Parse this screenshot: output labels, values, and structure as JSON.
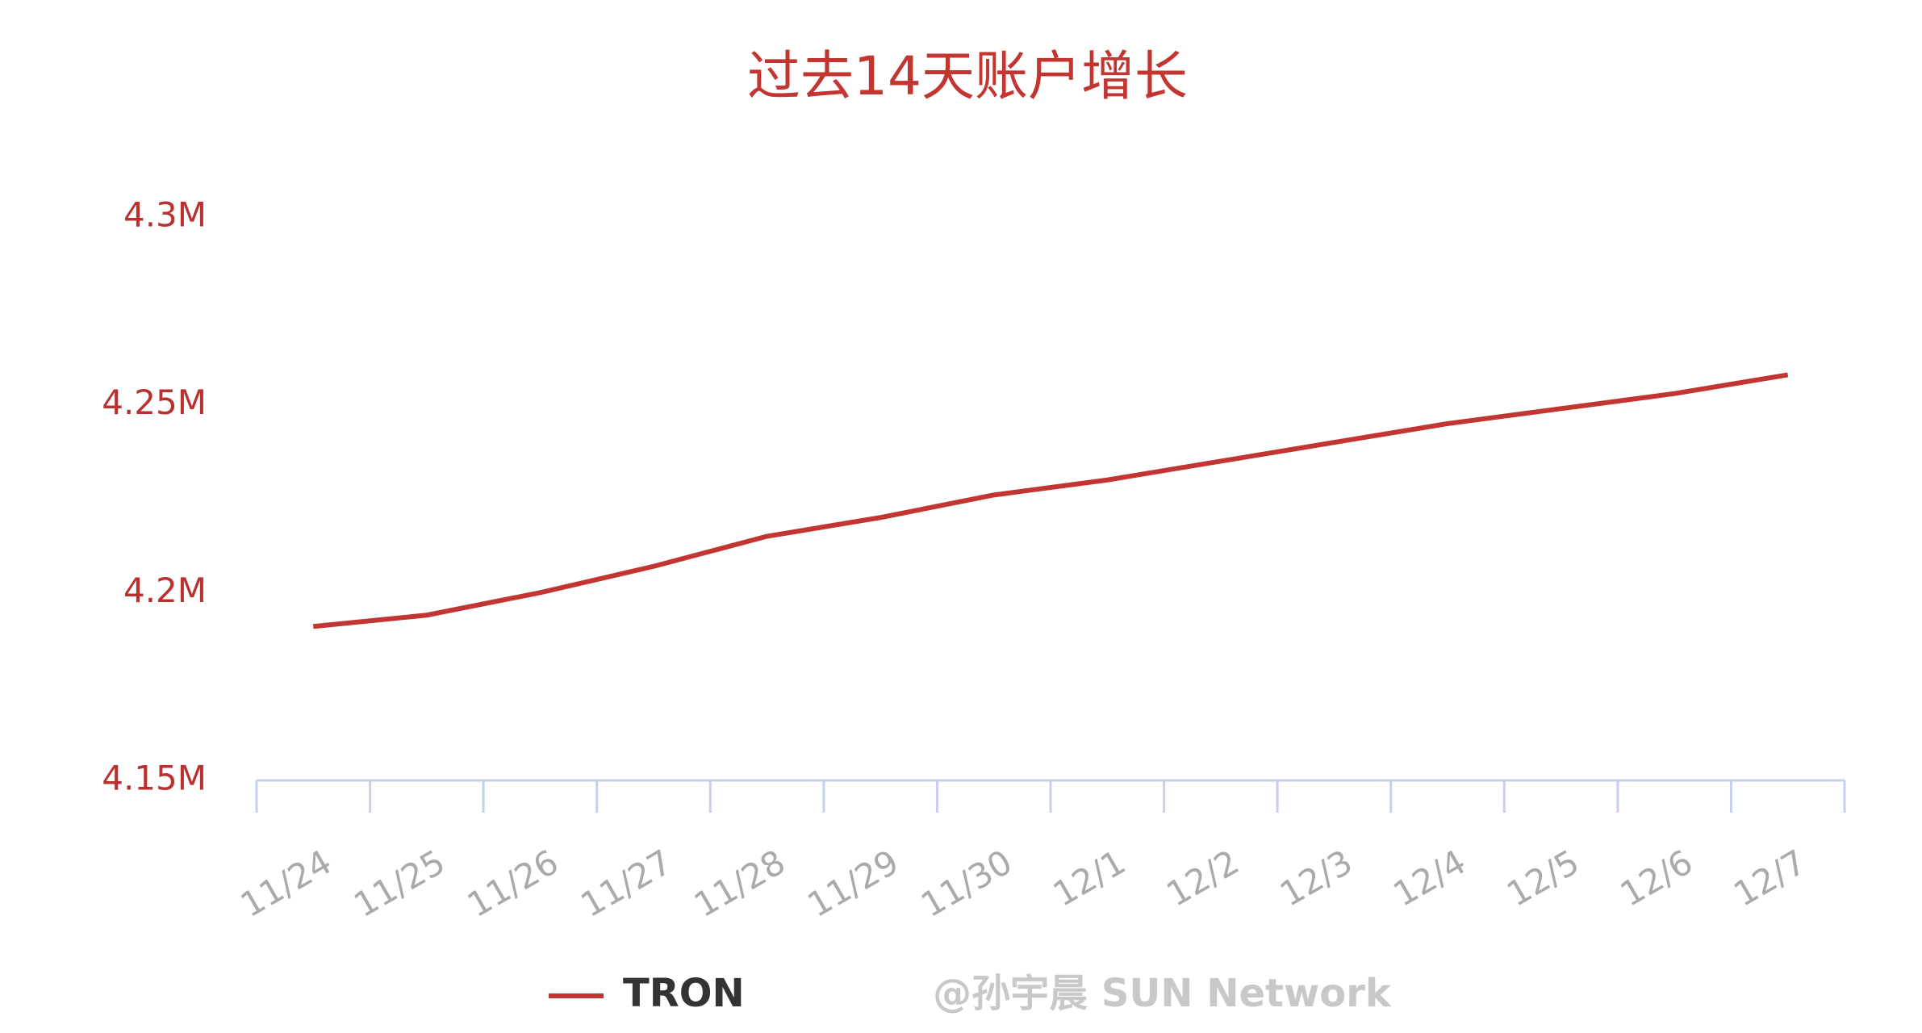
{
  "chart_data": {
    "type": "line",
    "title": "过去14天账户增长",
    "categories": [
      "11/24",
      "11/25",
      "11/26",
      "11/27",
      "11/28",
      "11/29",
      "11/30",
      "12/1",
      "12/2",
      "12/3",
      "12/4",
      "12/5",
      "12/6",
      "12/7"
    ],
    "series": [
      {
        "name": "TRON",
        "color": "#c23531",
        "values": [
          4191000,
          4194000,
          4200000,
          4207000,
          4215000,
          4220000,
          4226000,
          4230000,
          4235000,
          4240000,
          4245000,
          4249000,
          4253000,
          4258000
        ]
      }
    ],
    "ylim": [
      4150000,
      4300000
    ],
    "yticks": [
      {
        "value": 4150000,
        "label": "4.15M"
      },
      {
        "value": 4200000,
        "label": "4.2M"
      },
      {
        "value": 4250000,
        "label": "4.25M"
      },
      {
        "value": 4300000,
        "label": "4.3M"
      }
    ],
    "grid": false,
    "legend": "bottom",
    "watermark": "@孙宇晨 SUN Network"
  }
}
